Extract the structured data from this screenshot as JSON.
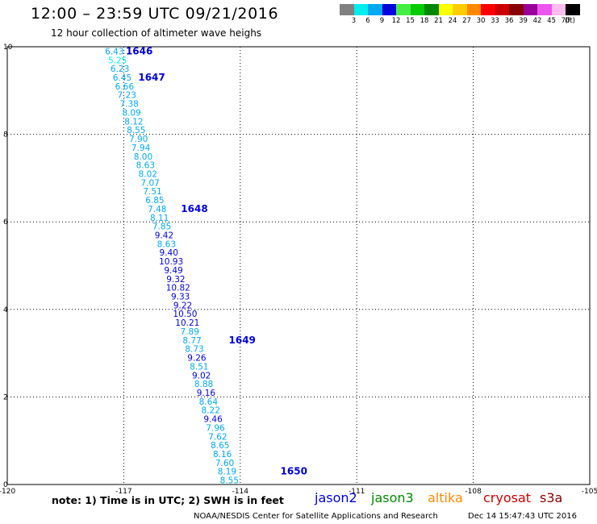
{
  "header": {
    "title": "12:00 – 23:59 UTC 09/21/2016",
    "subtitle": "12 hour collection of altimeter wave heighs"
  },
  "colorbar": {
    "unit_label": "(ft)",
    "cells": [
      {
        "color": "#808080",
        "label": "3"
      },
      {
        "color": "#00eeee",
        "label": "6"
      },
      {
        "color": "#00aaee",
        "label": "9"
      },
      {
        "color": "#0000dd",
        "label": "12"
      },
      {
        "color": "#44ee44",
        "label": "15"
      },
      {
        "color": "#00cc00",
        "label": "18"
      },
      {
        "color": "#008800",
        "label": "21"
      },
      {
        "color": "#ffff00",
        "label": "24"
      },
      {
        "color": "#ffcc00",
        "label": "27"
      },
      {
        "color": "#ff8800",
        "label": "30"
      },
      {
        "color": "#ff0000",
        "label": "33"
      },
      {
        "color": "#cc0000",
        "label": "36"
      },
      {
        "color": "#880000",
        "label": "39"
      },
      {
        "color": "#990099",
        "label": "42"
      },
      {
        "color": "#ee55ee",
        "label": "45"
      },
      {
        "color": "#ffbbee",
        "label": "70"
      },
      {
        "color": "#000000",
        "label": ""
      }
    ]
  },
  "chart_data": {
    "type": "scatter",
    "xlim": [
      -120,
      -105
    ],
    "ylim": [
      0,
      10
    ],
    "x_ticks": [
      "-120",
      "-117",
      "-114",
      "-111",
      "-108",
      "-105"
    ],
    "y_ticks": [
      "0",
      "2",
      "4",
      "6",
      "8",
      "10"
    ],
    "grid": true,
    "points": [
      {
        "lon": -117.24,
        "lat": 9.9,
        "value": "6.43",
        "color": "#00aaee"
      },
      {
        "lon": -117.16,
        "lat": 9.7,
        "value": "5.25",
        "color": "#00eeee"
      },
      {
        "lon": -117.1,
        "lat": 9.5,
        "value": "6.23",
        "color": "#00aaee"
      },
      {
        "lon": -117.04,
        "lat": 9.3,
        "value": "6.45",
        "color": "#00aaee"
      },
      {
        "lon": -116.98,
        "lat": 9.1,
        "value": "6.66",
        "color": "#00aaee"
      },
      {
        "lon": -116.92,
        "lat": 8.9,
        "value": "7.23",
        "color": "#00aaee"
      },
      {
        "lon": -116.86,
        "lat": 8.7,
        "value": "7.38",
        "color": "#00aaee"
      },
      {
        "lon": -116.8,
        "lat": 8.5,
        "value": "8.09",
        "color": "#00aaee"
      },
      {
        "lon": -116.74,
        "lat": 8.3,
        "value": "8.12",
        "color": "#00aaee"
      },
      {
        "lon": -116.68,
        "lat": 8.1,
        "value": "8.55",
        "color": "#00aaee"
      },
      {
        "lon": -116.62,
        "lat": 7.9,
        "value": "7.90",
        "color": "#00aaee"
      },
      {
        "lon": -116.56,
        "lat": 7.7,
        "value": "7.94",
        "color": "#00aaee"
      },
      {
        "lon": -116.5,
        "lat": 7.5,
        "value": "8.00",
        "color": "#00aaee"
      },
      {
        "lon": -116.44,
        "lat": 7.3,
        "value": "8.63",
        "color": "#00aaee"
      },
      {
        "lon": -116.38,
        "lat": 7.1,
        "value": "8.02",
        "color": "#00aaee"
      },
      {
        "lon": -116.32,
        "lat": 6.9,
        "value": "7.07",
        "color": "#00aaee"
      },
      {
        "lon": -116.26,
        "lat": 6.7,
        "value": "7.51",
        "color": "#00aaee"
      },
      {
        "lon": -116.2,
        "lat": 6.5,
        "value": "6.85",
        "color": "#00aaee"
      },
      {
        "lon": -116.14,
        "lat": 6.3,
        "value": "7.48",
        "color": "#00aaee"
      },
      {
        "lon": -116.08,
        "lat": 6.1,
        "value": "8.11",
        "color": "#00aaee"
      },
      {
        "lon": -116.02,
        "lat": 5.9,
        "value": "7.85",
        "color": "#00aaee"
      },
      {
        "lon": -115.96,
        "lat": 5.7,
        "value": "9.42",
        "color": "#0000dd"
      },
      {
        "lon": -115.9,
        "lat": 5.5,
        "value": "8.63",
        "color": "#00aaee"
      },
      {
        "lon": -115.84,
        "lat": 5.3,
        "value": "9.40",
        "color": "#0000dd"
      },
      {
        "lon": -115.78,
        "lat": 5.1,
        "value": "10.93",
        "color": "#0000dd"
      },
      {
        "lon": -115.72,
        "lat": 4.9,
        "value": "9.49",
        "color": "#0000dd"
      },
      {
        "lon": -115.66,
        "lat": 4.7,
        "value": "9.32",
        "color": "#0000dd"
      },
      {
        "lon": -115.6,
        "lat": 4.5,
        "value": "10.82",
        "color": "#0000dd"
      },
      {
        "lon": -115.54,
        "lat": 4.3,
        "value": "9.33",
        "color": "#0000dd"
      },
      {
        "lon": -115.48,
        "lat": 4.1,
        "value": "9.22",
        "color": "#0000dd"
      },
      {
        "lon": -115.42,
        "lat": 3.9,
        "value": "10.50",
        "color": "#0000dd"
      },
      {
        "lon": -115.36,
        "lat": 3.7,
        "value": "10.21",
        "color": "#0000dd"
      },
      {
        "lon": -115.3,
        "lat": 3.5,
        "value": "7.89",
        "color": "#00aaee"
      },
      {
        "lon": -115.24,
        "lat": 3.3,
        "value": "8.77",
        "color": "#00aaee"
      },
      {
        "lon": -115.18,
        "lat": 3.1,
        "value": "8.73",
        "color": "#00aaee"
      },
      {
        "lon": -115.12,
        "lat": 2.9,
        "value": "9.26",
        "color": "#0000dd"
      },
      {
        "lon": -115.06,
        "lat": 2.7,
        "value": "8.51",
        "color": "#00aaee"
      },
      {
        "lon": -115.0,
        "lat": 2.5,
        "value": "9.02",
        "color": "#0000dd"
      },
      {
        "lon": -114.94,
        "lat": 2.3,
        "value": "8.88",
        "color": "#00aaee"
      },
      {
        "lon": -114.88,
        "lat": 2.1,
        "value": "9.16",
        "color": "#0000dd"
      },
      {
        "lon": -114.82,
        "lat": 1.9,
        "value": "8.64",
        "color": "#00aaee"
      },
      {
        "lon": -114.76,
        "lat": 1.7,
        "value": "8.22",
        "color": "#00aaee"
      },
      {
        "lon": -114.7,
        "lat": 1.5,
        "value": "9.46",
        "color": "#0000dd"
      },
      {
        "lon": -114.64,
        "lat": 1.3,
        "value": "7.96",
        "color": "#00aaee"
      },
      {
        "lon": -114.58,
        "lat": 1.1,
        "value": "7.62",
        "color": "#00aaee"
      },
      {
        "lon": -114.52,
        "lat": 0.9,
        "value": "8.65",
        "color": "#00aaee"
      },
      {
        "lon": -114.46,
        "lat": 0.7,
        "value": "8.16",
        "color": "#00aaee"
      },
      {
        "lon": -114.4,
        "lat": 0.5,
        "value": "7.60",
        "color": "#00aaee"
      },
      {
        "lon": -114.34,
        "lat": 0.3,
        "value": "8.19",
        "color": "#00aaee"
      },
      {
        "lon": -114.28,
        "lat": 0.1,
        "value": "8.55",
        "color": "#00aaee"
      }
    ],
    "time_labels": [
      {
        "lon": -116.6,
        "lat": 9.9,
        "text": "1646"
      },
      {
        "lon": -116.28,
        "lat": 9.3,
        "text": "1647"
      },
      {
        "lon": -115.18,
        "lat": 6.3,
        "text": "1648"
      },
      {
        "lon": -113.95,
        "lat": 3.3,
        "text": "1649"
      },
      {
        "lon": -112.62,
        "lat": 0.3,
        "text": "1650"
      }
    ],
    "time_label_color": "#0000dd"
  },
  "footer": {
    "note": "note:  1) Time is in UTC;  2) SWH is in feet",
    "satellites": [
      {
        "name": "jason2",
        "color": "#0000dd"
      },
      {
        "name": "jason3",
        "color": "#008800"
      },
      {
        "name": "altika",
        "color": "#ff8800"
      },
      {
        "name": "cryosat",
        "color": "#cc0000"
      },
      {
        "name": "s3a",
        "color": "#880000"
      }
    ],
    "credit": "NOAA/NESDIS Center for Satellite Applications and Research",
    "date": "Dec 14 15:47:43 UTC 2016"
  }
}
